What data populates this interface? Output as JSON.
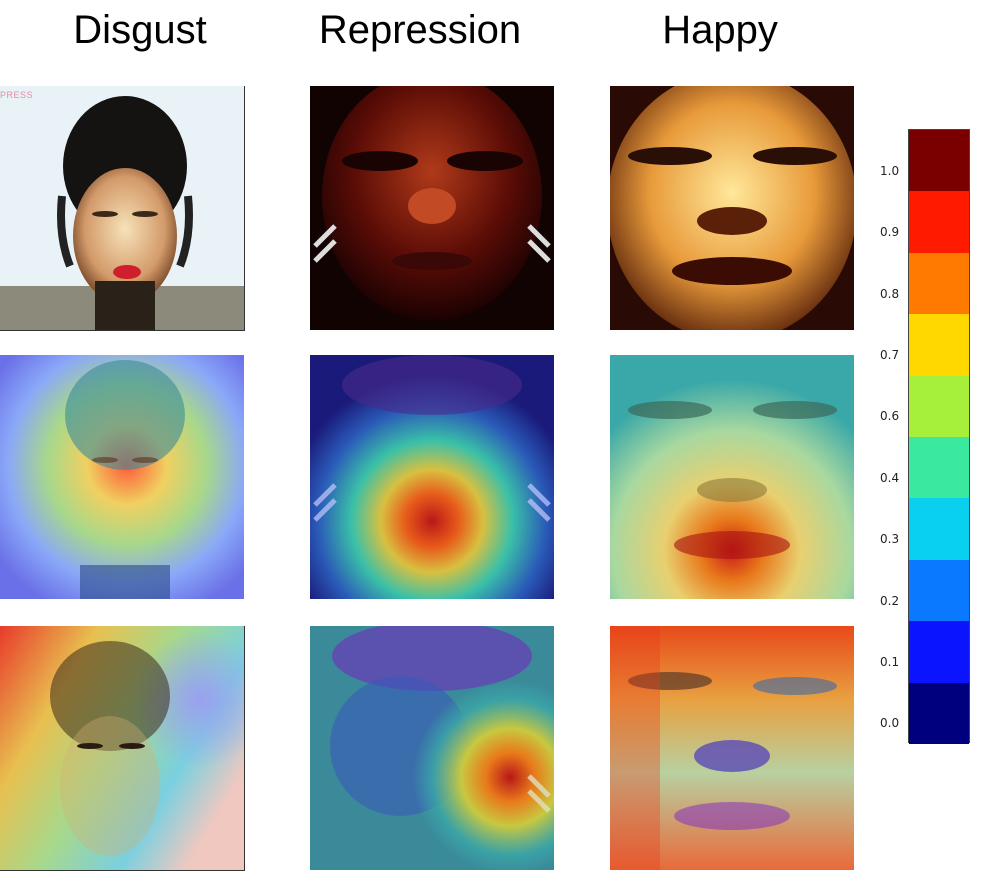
{
  "columns": [
    "Disgust",
    "Repression",
    "Happy"
  ],
  "colorbar": {
    "ticks": [
      "1.0",
      "0.9",
      "0.8",
      "0.7",
      "0.6",
      "0.4",
      "0.3",
      "0.2",
      "0.1",
      "0.0"
    ],
    "colors": [
      "#7a0000",
      "#ff1a00",
      "#ff7a00",
      "#ffd800",
      "#a6ef3a",
      "#3ae8a0",
      "#0ad0f0",
      "#0a78ff",
      "#0a14ff",
      "#00007e"
    ]
  },
  "watermark": "PRESS",
  "rows": [
    {
      "name": "original"
    },
    {
      "name": "heatmap-1"
    },
    {
      "name": "heatmap-2"
    }
  ]
}
